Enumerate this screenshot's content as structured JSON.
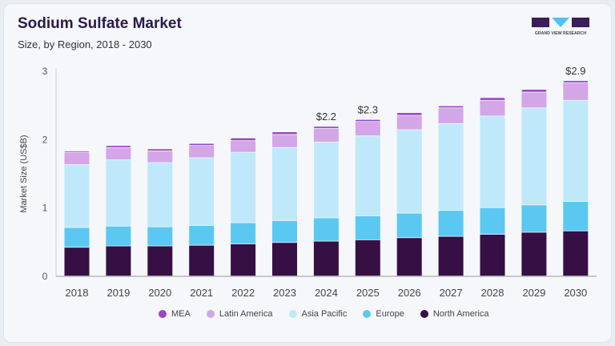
{
  "header": {
    "title": "Sodium Sulfate Market",
    "subtitle": "Size, by Region, 2018 - 2030"
  },
  "logo": {
    "text": "GRAND VIEW RESEARCH",
    "colors": [
      "#3b1d5c",
      "#4fc3f7"
    ]
  },
  "chart_data": {
    "type": "bar",
    "stacked": true,
    "title": "Sodium Sulfate Market",
    "subtitle": "Size, by Region, 2018 - 2030",
    "xlabel": "",
    "ylabel": "Market Size (US$B)",
    "ylim": [
      0,
      3
    ],
    "yticks": [
      "0",
      "1",
      "2",
      "3"
    ],
    "grid": false,
    "legend_position": "bottom",
    "categories": [
      "2018",
      "2019",
      "2020",
      "2021",
      "2022",
      "2023",
      "2024",
      "2025",
      "2026",
      "2027",
      "2028",
      "2029",
      "2030"
    ],
    "series": [
      {
        "name": "North America",
        "color": "#360f45",
        "values": [
          0.42,
          0.44,
          0.44,
          0.45,
          0.47,
          0.49,
          0.51,
          0.53,
          0.56,
          0.58,
          0.61,
          0.64,
          0.66
        ]
      },
      {
        "name": "Europe",
        "color": "#5bc8f2",
        "values": [
          0.29,
          0.29,
          0.28,
          0.29,
          0.31,
          0.32,
          0.34,
          0.35,
          0.36,
          0.38,
          0.39,
          0.4,
          0.43
        ]
      },
      {
        "name": "Asia Pacific",
        "color": "#bfe9fa",
        "values": [
          0.92,
          0.97,
          0.94,
          0.99,
          1.03,
          1.07,
          1.11,
          1.17,
          1.22,
          1.27,
          1.34,
          1.42,
          1.48
        ]
      },
      {
        "name": "Latin America",
        "color": "#d3a6e8",
        "values": [
          0.18,
          0.18,
          0.17,
          0.18,
          0.17,
          0.19,
          0.2,
          0.21,
          0.21,
          0.23,
          0.23,
          0.23,
          0.26
        ]
      },
      {
        "name": "MEA",
        "color": "#9b45c9",
        "values": [
          0.02,
          0.03,
          0.03,
          0.03,
          0.04,
          0.04,
          0.03,
          0.03,
          0.04,
          0.03,
          0.04,
          0.04,
          0.03
        ]
      }
    ],
    "annotations": [
      {
        "category": "2024",
        "text": "$2.2"
      },
      {
        "category": "2025",
        "text": "$2.3"
      },
      {
        "category": "2030",
        "text": "$2.9"
      }
    ]
  },
  "legend": [
    "MEA",
    "Latin America",
    "Asia Pacific",
    "Europe",
    "North America"
  ]
}
